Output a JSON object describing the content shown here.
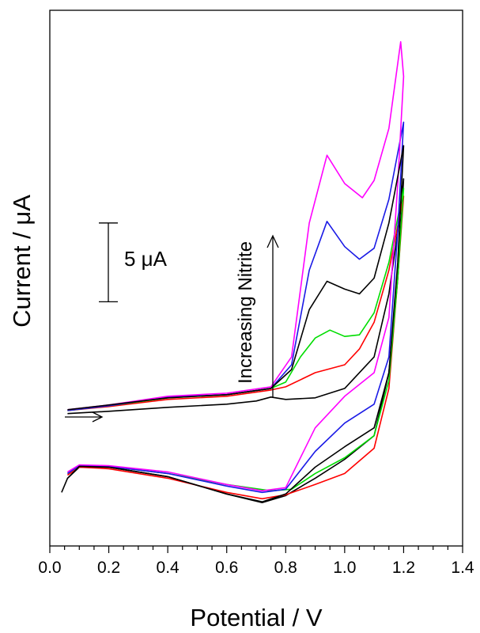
{
  "chart_data": {
    "type": "line",
    "title": "",
    "xlabel": "Potential / V",
    "ylabel": "Current / μA",
    "xlim": [
      0.0,
      1.4
    ],
    "ylim": [
      -3,
      31
    ],
    "x_ticks": [
      0.0,
      0.2,
      0.4,
      0.6,
      0.8,
      1.0,
      1.2,
      1.4
    ],
    "x_tick_labels": [
      "0.0",
      "0.2",
      "0.4",
      "0.6",
      "0.8",
      "1.0",
      "1.2",
      "1.4"
    ],
    "y_ticks_labeled": false,
    "grid": false,
    "legend": "none",
    "annotations": {
      "scale_bar_label": "5 μA",
      "scale_bar_value": 5,
      "trend_label": "Increasing Nitrite",
      "scan_direction": "→"
    },
    "series": [
      {
        "color": "#000000",
        "forward": [
          [
            0.06,
            5.4
          ],
          [
            0.2,
            5.55
          ],
          [
            0.4,
            5.8
          ],
          [
            0.6,
            6.0
          ],
          [
            0.7,
            6.2
          ],
          [
            0.75,
            6.45
          ],
          [
            0.8,
            6.3
          ],
          [
            0.9,
            6.4
          ],
          [
            1.0,
            7.0
          ],
          [
            1.1,
            9.0
          ],
          [
            1.15,
            13.0
          ],
          [
            1.18,
            17.0
          ],
          [
            1.2,
            20.3
          ]
        ],
        "reverse": [
          [
            1.2,
            20.3
          ],
          [
            1.18,
            14.0
          ],
          [
            1.15,
            8.0
          ],
          [
            1.1,
            4.0
          ],
          [
            1.0,
            2.5
          ],
          [
            0.9,
            1.3
          ],
          [
            0.8,
            0.2
          ],
          [
            0.72,
            -0.25
          ],
          [
            0.6,
            0.3
          ],
          [
            0.4,
            1.4
          ],
          [
            0.2,
            2.0
          ],
          [
            0.1,
            2.0
          ],
          [
            0.06,
            1.3
          ],
          [
            0.04,
            0.4
          ]
        ]
      },
      {
        "color": "#ff0000",
        "forward": [
          [
            0.06,
            5.6
          ],
          [
            0.2,
            5.85
          ],
          [
            0.4,
            6.3
          ],
          [
            0.6,
            6.5
          ],
          [
            0.75,
            6.9
          ],
          [
            0.8,
            7.1
          ],
          [
            0.9,
            8.0
          ],
          [
            1.0,
            8.5
          ],
          [
            1.05,
            9.5
          ],
          [
            1.1,
            11.2
          ],
          [
            1.15,
            14.5
          ],
          [
            1.2,
            19.2
          ]
        ],
        "reverse": [
          [
            1.2,
            19.2
          ],
          [
            1.18,
            14.0
          ],
          [
            1.15,
            7.0
          ],
          [
            1.1,
            3.2
          ],
          [
            1.0,
            1.6
          ],
          [
            0.9,
            0.9
          ],
          [
            0.8,
            0.25
          ],
          [
            0.72,
            0.0
          ],
          [
            0.6,
            0.4
          ],
          [
            0.4,
            1.3
          ],
          [
            0.2,
            1.9
          ],
          [
            0.1,
            2.0
          ],
          [
            0.06,
            1.5
          ]
        ]
      },
      {
        "color": "#00dd00",
        "forward": [
          [
            0.06,
            5.6
          ],
          [
            0.2,
            5.9
          ],
          [
            0.4,
            6.4
          ],
          [
            0.6,
            6.6
          ],
          [
            0.75,
            7.0
          ],
          [
            0.8,
            7.4
          ],
          [
            0.85,
            9.0
          ],
          [
            0.9,
            10.2
          ],
          [
            0.95,
            10.7
          ],
          [
            1.0,
            10.3
          ],
          [
            1.05,
            10.4
          ],
          [
            1.1,
            11.8
          ],
          [
            1.15,
            15.0
          ],
          [
            1.2,
            19.7
          ]
        ],
        "reverse": [
          [
            1.2,
            19.7
          ],
          [
            1.18,
            14.0
          ],
          [
            1.15,
            7.5
          ],
          [
            1.1,
            4.0
          ],
          [
            1.0,
            2.6
          ],
          [
            0.9,
            1.6
          ],
          [
            0.82,
            0.6
          ],
          [
            0.75,
            0.5
          ],
          [
            0.6,
            0.9
          ],
          [
            0.4,
            1.6
          ],
          [
            0.2,
            2.05
          ],
          [
            0.1,
            2.1
          ],
          [
            0.06,
            1.6
          ]
        ]
      },
      {
        "color": "#1a1ae6",
        "forward": [
          [
            0.06,
            5.6
          ],
          [
            0.2,
            5.9
          ],
          [
            0.4,
            6.45
          ],
          [
            0.6,
            6.6
          ],
          [
            0.75,
            7.0
          ],
          [
            0.82,
            8.5
          ],
          [
            0.88,
            14.5
          ],
          [
            0.94,
            17.6
          ],
          [
            1.0,
            16.0
          ],
          [
            1.05,
            15.2
          ],
          [
            1.1,
            15.9
          ],
          [
            1.15,
            19.0
          ],
          [
            1.2,
            23.9
          ]
        ],
        "reverse": [
          [
            1.2,
            23.9
          ],
          [
            1.18,
            17.0
          ],
          [
            1.15,
            9.0
          ],
          [
            1.1,
            6.0
          ],
          [
            1.0,
            4.8
          ],
          [
            0.9,
            3.0
          ],
          [
            0.8,
            0.6
          ],
          [
            0.72,
            0.4
          ],
          [
            0.6,
            0.8
          ],
          [
            0.4,
            1.6
          ],
          [
            0.2,
            2.05
          ],
          [
            0.1,
            2.1
          ],
          [
            0.06,
            1.6
          ]
        ]
      },
      {
        "color": "#ff00ff",
        "forward": [
          [
            0.06,
            5.65
          ],
          [
            0.2,
            5.95
          ],
          [
            0.4,
            6.5
          ],
          [
            0.6,
            6.7
          ],
          [
            0.75,
            7.1
          ],
          [
            0.82,
            9.0
          ],
          [
            0.88,
            17.5
          ],
          [
            0.94,
            21.8
          ],
          [
            1.0,
            20.0
          ],
          [
            1.06,
            19.1
          ],
          [
            1.1,
            20.2
          ],
          [
            1.15,
            23.5
          ],
          [
            1.19,
            29.0
          ],
          [
            1.2,
            26.8
          ]
        ],
        "reverse": [
          [
            1.2,
            26.8
          ],
          [
            1.18,
            20.0
          ],
          [
            1.15,
            11.5
          ],
          [
            1.1,
            8.0
          ],
          [
            1.0,
            6.5
          ],
          [
            0.9,
            4.5
          ],
          [
            0.8,
            0.7
          ],
          [
            0.72,
            0.5
          ],
          [
            0.6,
            0.9
          ],
          [
            0.4,
            1.7
          ],
          [
            0.2,
            2.1
          ],
          [
            0.1,
            2.15
          ],
          [
            0.06,
            1.7
          ]
        ]
      },
      {
        "color": "#000000",
        "forward": [
          [
            0.06,
            5.65
          ],
          [
            0.2,
            5.95
          ],
          [
            0.4,
            6.4
          ],
          [
            0.6,
            6.6
          ],
          [
            0.75,
            7.0
          ],
          [
            0.82,
            8.2
          ],
          [
            0.88,
            12.0
          ],
          [
            0.94,
            13.8
          ],
          [
            1.0,
            13.3
          ],
          [
            1.05,
            13.0
          ],
          [
            1.1,
            14.0
          ],
          [
            1.15,
            17.5
          ],
          [
            1.2,
            22.4
          ]
        ],
        "reverse": [
          [
            1.2,
            22.4
          ],
          [
            1.18,
            15.0
          ],
          [
            1.15,
            8.0
          ],
          [
            1.1,
            4.5
          ],
          [
            1.0,
            3.3
          ],
          [
            0.9,
            2.0
          ],
          [
            0.8,
            0.3
          ],
          [
            0.72,
            -0.2
          ],
          [
            0.6,
            0.3
          ],
          [
            0.4,
            1.4
          ],
          [
            0.2,
            2.0
          ],
          [
            0.1,
            2.05
          ],
          [
            0.06,
            1.3
          ]
        ]
      }
    ]
  }
}
